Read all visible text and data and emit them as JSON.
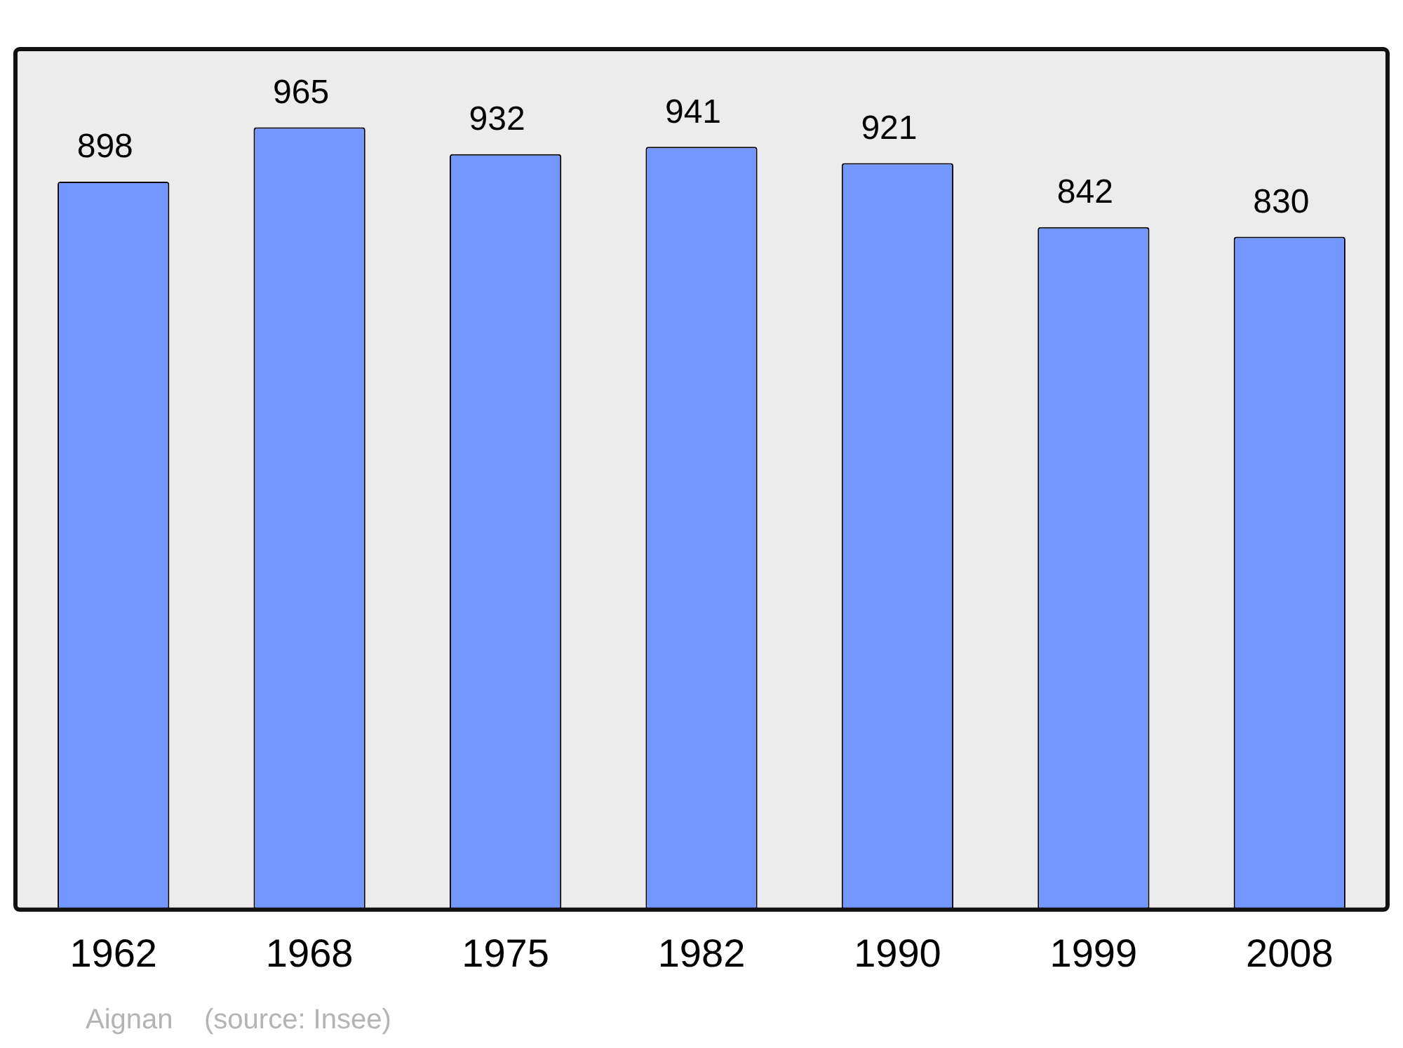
{
  "chart_data": {
    "type": "bar",
    "categories": [
      "1962",
      "1968",
      "1975",
      "1982",
      "1990",
      "1999",
      "2008"
    ],
    "values": [
      898,
      965,
      932,
      941,
      921,
      842,
      830
    ],
    "color": "#7397ff",
    "data_labels": true,
    "grid": false,
    "legend": false,
    "annotations": [
      "Aignan    (source: Insee)"
    ]
  }
}
